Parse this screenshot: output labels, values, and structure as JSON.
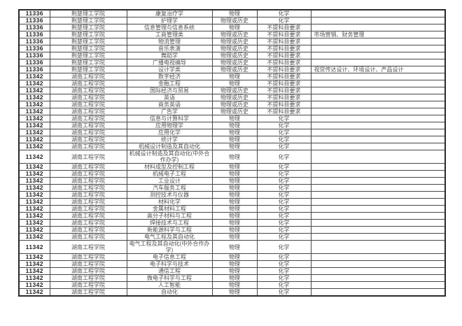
{
  "colors": {
    "text_gray": "#525252",
    "code_color": "#242424",
    "border_color": "#464646",
    "background": "#ffffff"
  },
  "table": {
    "rows": [
      {
        "code": "11336",
        "school": "荆楚理工学院",
        "major": "康复治疗学",
        "subject": "物理",
        "requirement": "化学",
        "note": ""
      },
      {
        "code": "11336",
        "school": "荆楚理工学院",
        "major": "护理学",
        "subject": "物理或历史",
        "requirement": "化学",
        "note": ""
      },
      {
        "code": "11336",
        "school": "荆楚理工学院",
        "major": "信息管理与信息系统",
        "subject": "物理",
        "requirement": "不提科目要求",
        "note": ""
      },
      {
        "code": "11336",
        "school": "荆楚理工学院",
        "major": "工商管理类",
        "subject": "物理或历史",
        "requirement": "不提科目要求",
        "note": "市场营销、财务管理"
      },
      {
        "code": "11336",
        "school": "荆楚理工学院",
        "major": "物流管理",
        "subject": "物理或历史",
        "requirement": "不提科目要求",
        "note": ""
      },
      {
        "code": "11336",
        "school": "荆楚理工学院",
        "major": "音乐表演",
        "subject": "物理或历史",
        "requirement": "不提科目要求",
        "note": ""
      },
      {
        "code": "11336",
        "school": "荆楚理工学院",
        "major": "舞蹈学",
        "subject": "物理或历史",
        "requirement": "不提科目要求",
        "note": ""
      },
      {
        "code": "11336",
        "school": "荆楚理工学院",
        "major": "广播电视编导",
        "subject": "物理或历史",
        "requirement": "不提科目要求",
        "note": ""
      },
      {
        "code": "11336",
        "school": "荆楚理工学院",
        "major": "设计学类",
        "subject": "物理或历史",
        "requirement": "不提科目要求",
        "note": "视觉传达设计、环境设计、产品设计"
      },
      {
        "code": "11342",
        "school": "湖南工程学院",
        "major": "数字经济",
        "subject": "物理",
        "requirement": "不提科目要求",
        "note": ""
      },
      {
        "code": "11342",
        "school": "湖南工程学院",
        "major": "金融工程",
        "subject": "物理",
        "requirement": "不提科目要求",
        "note": ""
      },
      {
        "code": "11342",
        "school": "湖南工程学院",
        "major": "国际经济与贸易",
        "subject": "物理或历史",
        "requirement": "不提科目要求",
        "note": ""
      },
      {
        "code": "11342",
        "school": "湖南工程学院",
        "major": "英语",
        "subject": "物理或历史",
        "requirement": "不提科目要求",
        "note": ""
      },
      {
        "code": "11342",
        "school": "湖南工程学院",
        "major": "商务英语",
        "subject": "物理或历史",
        "requirement": "不提科目要求",
        "note": ""
      },
      {
        "code": "11342",
        "school": "湖南工程学院",
        "major": "广告学",
        "subject": "物理或历史",
        "requirement": "不提科目要求",
        "note": ""
      },
      {
        "code": "11342",
        "school": "湖南工程学院",
        "major": "信息与计算科学",
        "subject": "物理",
        "requirement": "化学",
        "note": ""
      },
      {
        "code": "11342",
        "school": "湖南工程学院",
        "major": "应用物理学",
        "subject": "物理",
        "requirement": "化学",
        "note": ""
      },
      {
        "code": "11342",
        "school": "湖南工程学院",
        "major": "应用化学",
        "subject": "物理",
        "requirement": "化学",
        "note": ""
      },
      {
        "code": "11342",
        "school": "湖南工程学院",
        "major": "统计学",
        "subject": "物理",
        "requirement": "化学",
        "note": ""
      },
      {
        "code": "11342",
        "school": "湖南工程学院",
        "major": "机械设计制造及其自动化",
        "subject": "物理",
        "requirement": "化学",
        "note": ""
      },
      {
        "code": "11342",
        "school": "湖南工程学院",
        "major": "机械设计制造及其自动化(中外合作办学)",
        "subject": "物理",
        "requirement": "化学",
        "note": ""
      },
      {
        "code": "11342",
        "school": "湖南工程学院",
        "major": "材料成型及控制工程",
        "subject": "物理",
        "requirement": "化学",
        "note": ""
      },
      {
        "code": "11342",
        "school": "湖南工程学院",
        "major": "机械电子工程",
        "subject": "物理",
        "requirement": "化学",
        "note": ""
      },
      {
        "code": "11342",
        "school": "湖南工程学院",
        "major": "工业设计",
        "subject": "物理",
        "requirement": "化学",
        "note": ""
      },
      {
        "code": "11342",
        "school": "湖南工程学院",
        "major": "汽车服务工程",
        "subject": "物理",
        "requirement": "化学",
        "note": ""
      },
      {
        "code": "11342",
        "school": "湖南工程学院",
        "major": "测控技术与仪器",
        "subject": "物理",
        "requirement": "化学",
        "note": ""
      },
      {
        "code": "11342",
        "school": "湖南工程学院",
        "major": "材料化学",
        "subject": "物理",
        "requirement": "化学",
        "note": ""
      },
      {
        "code": "11342",
        "school": "湖南工程学院",
        "major": "金属材料工程",
        "subject": "物理",
        "requirement": "化学",
        "note": ""
      },
      {
        "code": "11342",
        "school": "湖南工程学院",
        "major": "高分子材料与工程",
        "subject": "物理",
        "requirement": "化学",
        "note": ""
      },
      {
        "code": "11342",
        "school": "湖南工程学院",
        "major": "焊接技术与工程",
        "subject": "物理",
        "requirement": "化学",
        "note": ""
      },
      {
        "code": "11342",
        "school": "湖南工程学院",
        "major": "新能源科学与工程",
        "subject": "物理",
        "requirement": "化学",
        "note": ""
      },
      {
        "code": "11342",
        "school": "湖南工程学院",
        "major": "电气工程及其自动化",
        "subject": "物理",
        "requirement": "化学",
        "note": ""
      },
      {
        "code": "11342",
        "school": "湖南工程学院",
        "major": "电气工程及其自动化(中外合作办学)",
        "subject": "物理",
        "requirement": "化学",
        "note": ""
      },
      {
        "code": "11342",
        "school": "湖南工程学院",
        "major": "电子信息工程",
        "subject": "物理",
        "requirement": "化学",
        "note": ""
      },
      {
        "code": "11342",
        "school": "湖南工程学院",
        "major": "电子科学与技术",
        "subject": "物理",
        "requirement": "化学",
        "note": ""
      },
      {
        "code": "11342",
        "school": "湖南工程学院",
        "major": "通信工程",
        "subject": "物理",
        "requirement": "化学",
        "note": ""
      },
      {
        "code": "11342",
        "school": "湖南工程学院",
        "major": "微电子科学与工程",
        "subject": "物理",
        "requirement": "化学",
        "note": ""
      },
      {
        "code": "11342",
        "school": "湖南工程学院",
        "major": "人工智能",
        "subject": "物理",
        "requirement": "化学",
        "note": ""
      },
      {
        "code": "11342",
        "school": "湖南工程学院",
        "major": "自动化",
        "subject": "物理",
        "requirement": "化学",
        "note": ""
      }
    ]
  }
}
